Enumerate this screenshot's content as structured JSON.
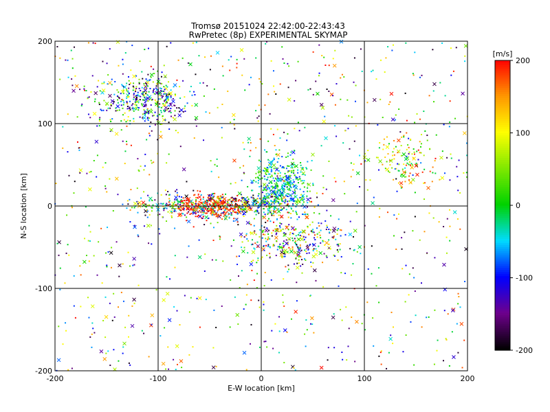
{
  "chart_data": {
    "type": "scatter",
    "title": "Tromsø 20151024 22:42:00-22:43:43",
    "subtitle": "RwPretec (8p) EXPERIMENTAL SKYMAP",
    "xlabel": "E-W location [km]",
    "ylabel": "N-S location [km]",
    "xlim": [
      -200,
      200
    ],
    "ylim": [
      -200,
      200
    ],
    "xticks": [
      -200,
      -100,
      0,
      100,
      200
    ],
    "yticks": [
      -200,
      -100,
      0,
      100,
      200
    ],
    "grid": true,
    "colorbar": {
      "label": "[m/s]",
      "range": [
        -200,
        200
      ],
      "ticks": [
        200,
        100,
        0,
        -100,
        -200
      ],
      "colormap": "rainbow (black-purple-blue-cyan-green-yellow-red)"
    },
    "markers": [
      "dot",
      "cross"
    ],
    "clusters": [
      {
        "center": [
          -115,
          128
        ],
        "spread": [
          22,
          16
        ],
        "value_range": [
          -200,
          120
        ]
      },
      {
        "center": [
          -40,
          0
        ],
        "spread": [
          35,
          7
        ],
        "value_range": [
          -200,
          200
        ]
      },
      {
        "center": [
          20,
          25
        ],
        "spread": [
          14,
          20
        ],
        "value_range": [
          -100,
          60
        ]
      },
      {
        "center": [
          30,
          -45
        ],
        "spread": [
          25,
          15
        ],
        "value_range": [
          -200,
          200
        ]
      },
      {
        "center": [
          140,
          58
        ],
        "spread": [
          18,
          18
        ],
        "value_range": [
          -20,
          200
        ]
      },
      {
        "center": [
          0,
          0
        ],
        "spread": [
          200,
          200
        ],
        "value_range": [
          -200,
          200
        ]
      }
    ]
  }
}
